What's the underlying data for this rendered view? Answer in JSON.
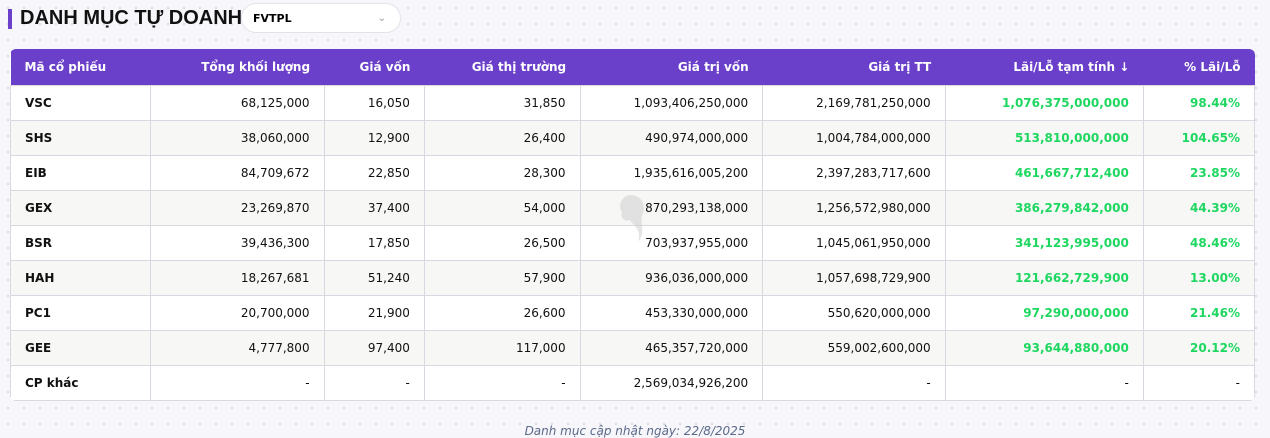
{
  "title": "DANH MỤC TỰ DOANH",
  "select": {
    "value": "FVTPL"
  },
  "headers": [
    "Mã cổ phiếu",
    "Tổng khối lượng",
    "Giá vốn",
    "Giá thị trường",
    "Giá trị vốn",
    "Giá trị TT",
    "Lãi/Lỗ tạm tính ↓",
    "% Lãi/Lỗ"
  ],
  "rows": [
    [
      "VSC",
      "68,125,000",
      "16,050",
      "31,850",
      "1,093,406,250,000",
      "2,169,781,250,000",
      "1,076,375,000,000",
      "98.44%"
    ],
    [
      "SHS",
      "38,060,000",
      "12,900",
      "26,400",
      "490,974,000,000",
      "1,004,784,000,000",
      "513,810,000,000",
      "104.65%"
    ],
    [
      "EIB",
      "84,709,672",
      "22,850",
      "28,300",
      "1,935,616,005,200",
      "2,397,283,717,600",
      "461,667,712,400",
      "23.85%"
    ],
    [
      "GEX",
      "23,269,870",
      "37,400",
      "54,000",
      "870,293,138,000",
      "1,256,572,980,000",
      "386,279,842,000",
      "44.39%"
    ],
    [
      "BSR",
      "39,436,300",
      "17,850",
      "26,500",
      "703,937,955,000",
      "1,045,061,950,000",
      "341,123,995,000",
      "48.46%"
    ],
    [
      "HAH",
      "18,267,681",
      "51,240",
      "57,900",
      "936,036,000,000",
      "1,057,698,729,900",
      "121,662,729,900",
      "13.00%"
    ],
    [
      "PC1",
      "20,700,000",
      "21,900",
      "26,600",
      "453,330,000,000",
      "550,620,000,000",
      "97,290,000,000",
      "21.46%"
    ],
    [
      "GEE",
      "4,777,800",
      "97,400",
      "117,000",
      "465,357,720,000",
      "559,002,600,000",
      "93,644,880,000",
      "20.12%"
    ],
    [
      "CP khác",
      "-",
      "-",
      "-",
      "2,569,034,926,200",
      "-",
      "-",
      "-"
    ]
  ],
  "watermark": "SSTOCK",
  "footer": "Danh mục cập nhật ngày: 22/8/2025"
}
